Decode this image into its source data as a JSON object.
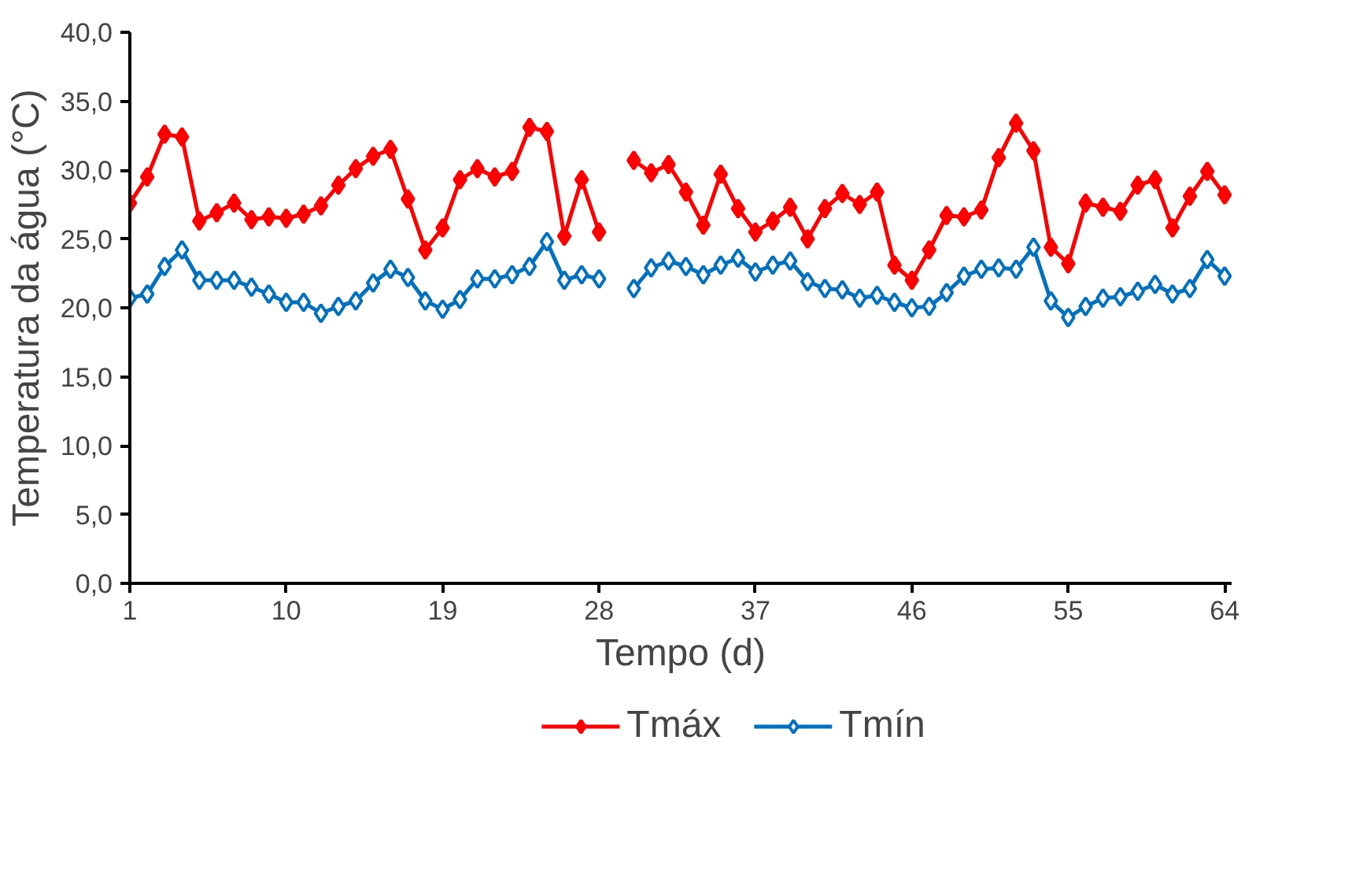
{
  "chart_data": {
    "type": "line",
    "xlabel": "Tempo (d)",
    "ylabel": "Temperatura da água (°C)",
    "x": [
      1,
      2,
      3,
      4,
      5,
      6,
      7,
      8,
      9,
      10,
      11,
      12,
      13,
      14,
      15,
      16,
      17,
      18,
      19,
      20,
      21,
      22,
      23,
      24,
      25,
      26,
      27,
      28,
      29,
      30,
      31,
      32,
      33,
      34,
      35,
      36,
      37,
      38,
      39,
      40,
      41,
      42,
      43,
      44,
      45,
      46,
      47,
      48,
      49,
      50,
      51,
      52,
      53,
      54,
      55,
      56,
      57,
      58,
      59,
      60,
      61,
      62,
      63,
      64
    ],
    "series": [
      {
        "name": "Tmáx",
        "color": "#ff0000",
        "values": [
          27.6,
          29.5,
          32.6,
          32.4,
          26.3,
          26.9,
          27.6,
          26.4,
          26.6,
          26.5,
          26.8,
          27.4,
          28.9,
          30.1,
          31.0,
          31.5,
          27.9,
          24.2,
          25.8,
          29.3,
          30.1,
          29.5,
          29.9,
          33.1,
          32.8,
          25.2,
          29.3,
          25.5,
          null,
          30.7,
          29.8,
          30.4,
          28.4,
          26.0,
          29.7,
          27.2,
          25.5,
          26.3,
          27.3,
          25.0,
          27.2,
          28.3,
          27.5,
          28.4,
          23.1,
          22.0,
          24.2,
          26.7,
          26.6,
          27.1,
          30.9,
          33.4,
          31.4,
          24.4,
          23.2,
          27.6,
          27.3,
          27.0,
          28.9,
          29.3,
          25.8,
          28.1,
          29.9,
          28.2
        ]
      },
      {
        "name": "Tmín",
        "color": "#0070c0",
        "values": [
          20.7,
          21.0,
          23.0,
          24.2,
          22.0,
          22.0,
          22.0,
          21.5,
          21.0,
          20.4,
          20.4,
          19.6,
          20.1,
          20.5,
          21.8,
          22.8,
          22.2,
          20.5,
          19.9,
          20.6,
          22.1,
          22.1,
          22.4,
          23.0,
          24.8,
          22.0,
          22.4,
          22.1,
          null,
          21.4,
          22.9,
          23.4,
          23.0,
          22.4,
          23.1,
          23.6,
          22.6,
          23.1,
          23.4,
          21.9,
          21.4,
          21.3,
          20.7,
          20.9,
          20.4,
          20.0,
          20.1,
          21.1,
          22.3,
          22.8,
          22.9,
          22.8,
          24.4,
          20.5,
          19.3,
          20.1,
          20.7,
          20.8,
          21.2,
          21.7,
          21.0,
          21.4,
          23.5,
          22.3
        ]
      }
    ],
    "xlim": [
      1,
      64.4
    ],
    "xticks": [
      1,
      10,
      19,
      28,
      37,
      46,
      55,
      64
    ],
    "ylim": [
      0,
      40
    ],
    "yticks": [
      {
        "value": 0,
        "label": "0,0"
      },
      {
        "value": 5,
        "label": "5,0"
      },
      {
        "value": 10,
        "label": "10,0"
      },
      {
        "value": 15,
        "label": "15,0"
      },
      {
        "value": 20,
        "label": "20,0"
      },
      {
        "value": 25,
        "label": "25,0"
      },
      {
        "value": 30,
        "label": "30,0"
      },
      {
        "value": 35,
        "label": "35,0"
      },
      {
        "value": 40,
        "label": "40,0"
      }
    ],
    "grid": false,
    "legend": "bottom",
    "marker": "diamond",
    "line_style": "solid"
  }
}
